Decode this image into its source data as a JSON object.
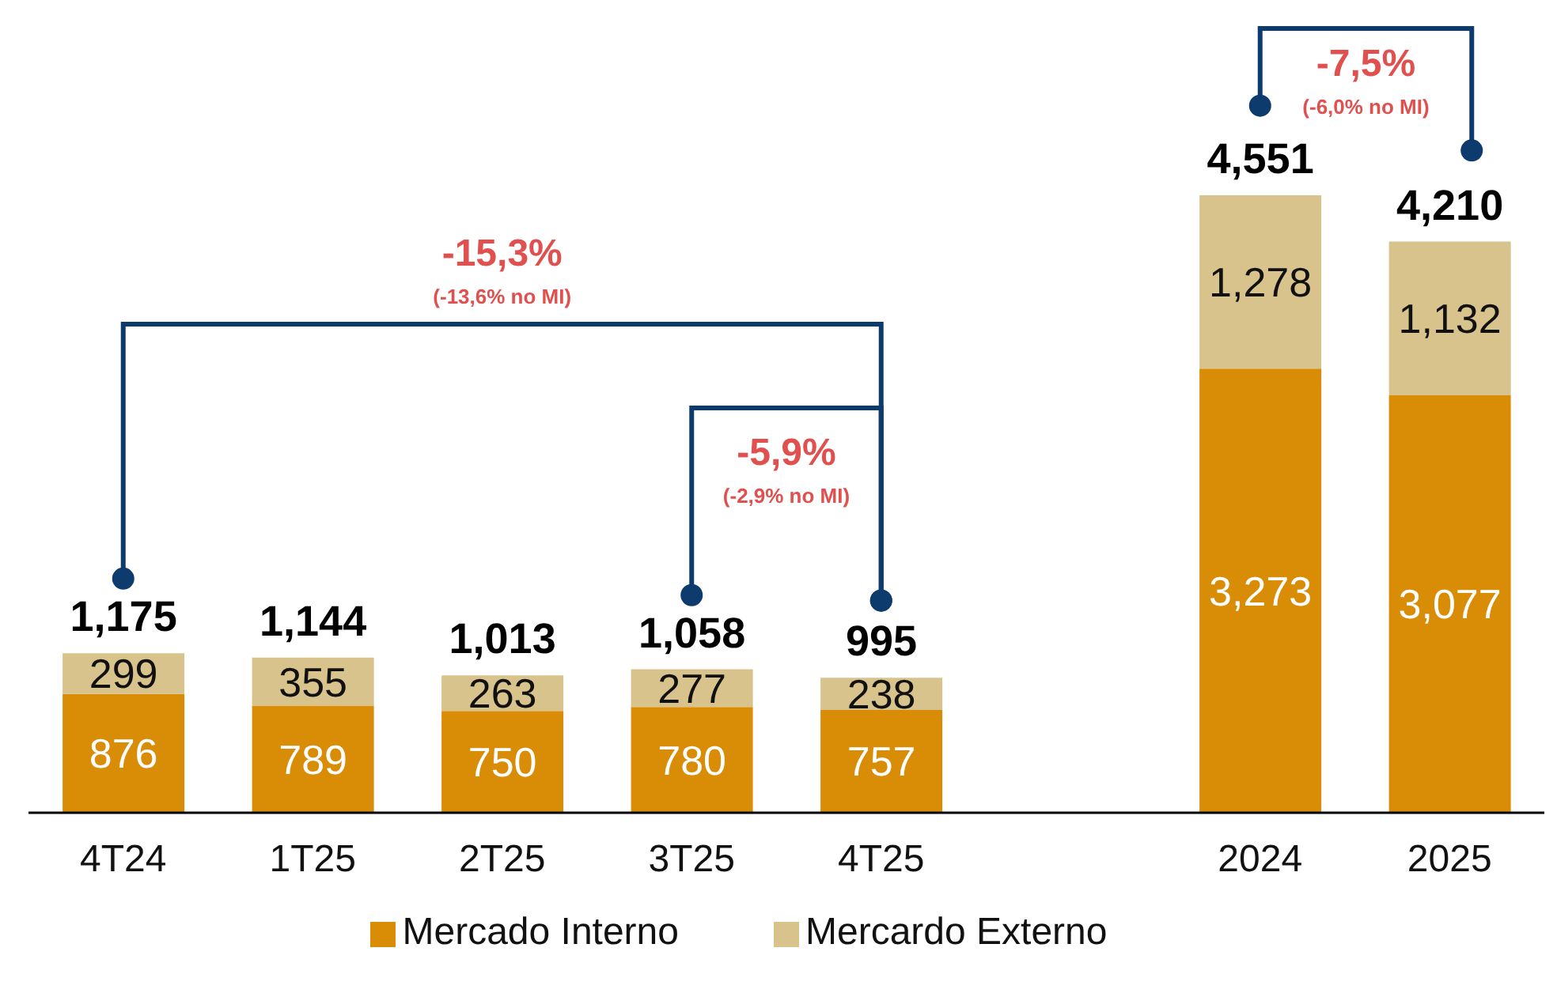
{
  "chart_data": {
    "type": "bar",
    "stacked": true,
    "categories": [
      "4T24",
      "1T25",
      "2T25",
      "3T25",
      "4T25",
      null,
      "2024",
      "2025"
    ],
    "series": [
      {
        "name": "Mercado Interno",
        "color": "#d98c06",
        "values": [
          876,
          789,
          750,
          780,
          757,
          null,
          3273,
          3077
        ],
        "value_labels": [
          "876",
          "789",
          "750",
          "780",
          "757",
          null,
          "3,273",
          "3,077"
        ]
      },
      {
        "name": "Mercardo Externo",
        "color": "#d9c38c",
        "values": [
          299,
          355,
          263,
          277,
          238,
          null,
          1278,
          1132
        ],
        "value_labels": [
          "299",
          "355",
          "263",
          "277",
          "238",
          null,
          "1,278",
          "1,132"
        ]
      }
    ],
    "totals": [
      "1,175",
      "1,144",
      "1,013",
      "1,058",
      "995",
      null,
      "4,551",
      "4,210"
    ],
    "legend": "bottom",
    "grid": false,
    "annotations": [
      "-15,3%",
      "(-13,6% no MI)",
      "-5,9%",
      "(-2,9% no MI)",
      "-7,5%",
      "(-6,0% no MI)"
    ]
  }
}
